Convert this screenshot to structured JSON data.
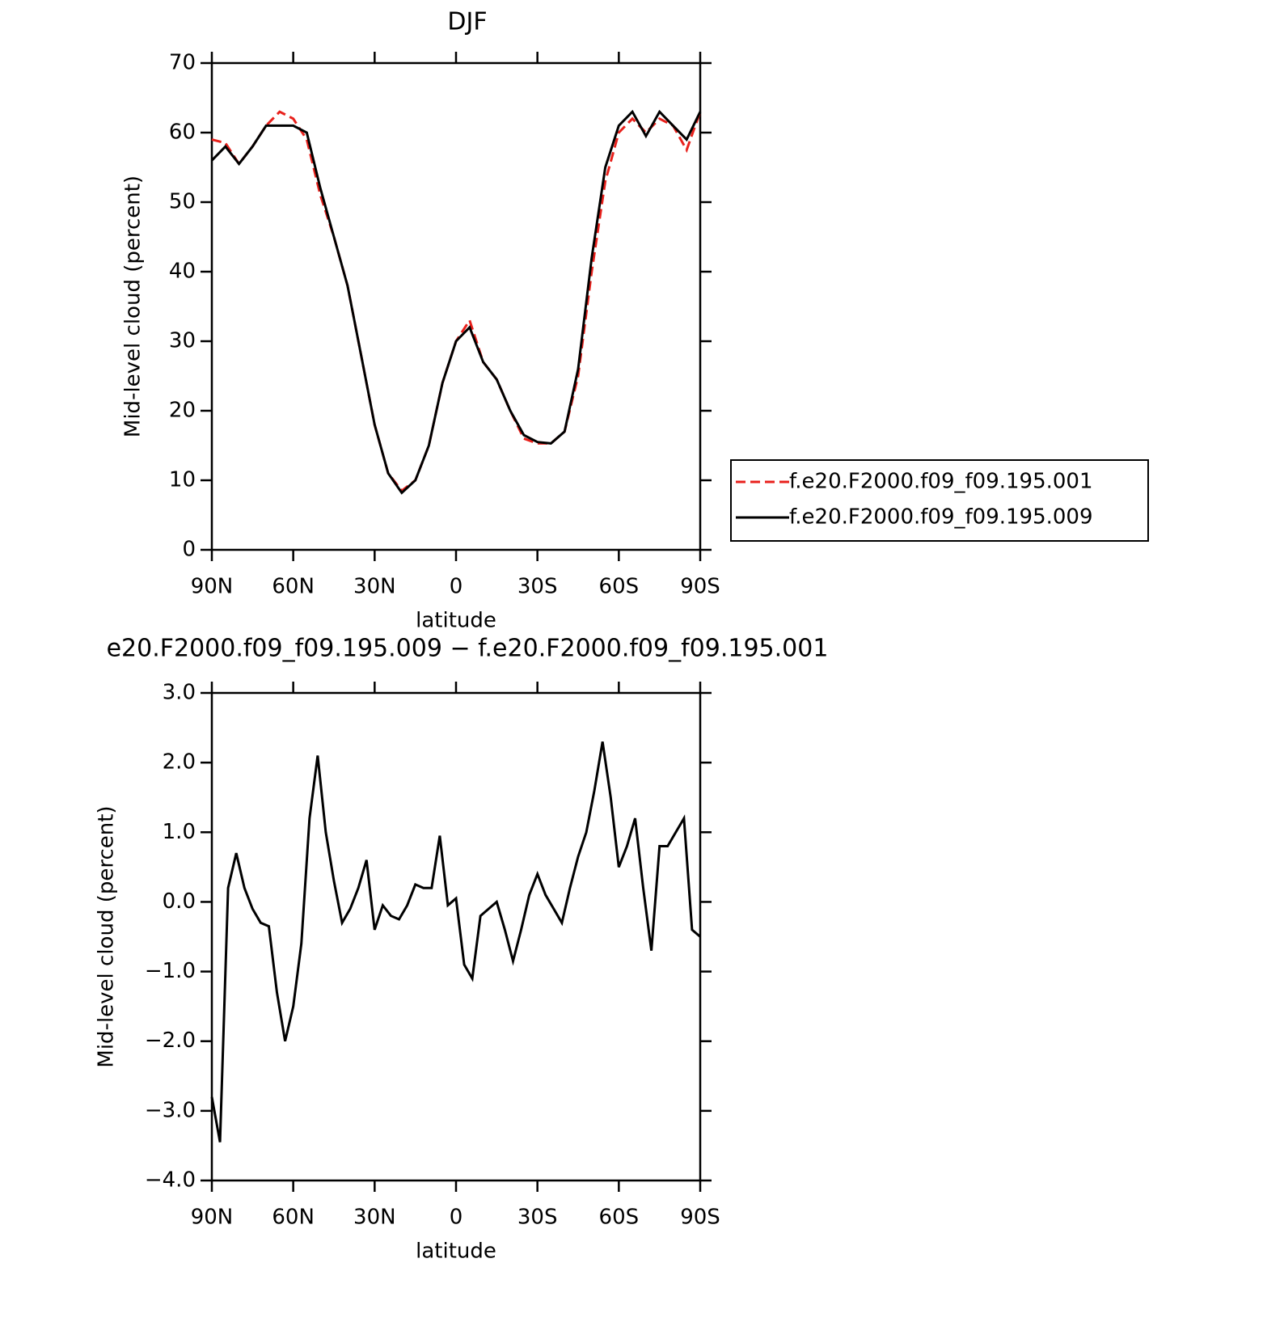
{
  "chart_data": [
    {
      "type": "line",
      "title": "DJF",
      "xlabel": "latitude",
      "ylabel": "Mid-level cloud (percent)",
      "x": [
        90,
        85,
        80,
        75,
        70,
        65,
        60,
        55,
        50,
        45,
        40,
        35,
        30,
        25,
        20,
        15,
        10,
        5,
        0,
        -5,
        -10,
        -15,
        -20,
        -25,
        -30,
        -35,
        -40,
        -45,
        -50,
        -55,
        -60,
        -65,
        -70,
        -75,
        -80,
        -85,
        -90
      ],
      "series": [
        {
          "name": "f.e20.F2000.f09_f09.195.001",
          "color": "#e8211c",
          "style": "dashed",
          "values": [
            59,
            58.5,
            55.5,
            58,
            61,
            63,
            62,
            59,
            51,
            45,
            38,
            28,
            18,
            11,
            8.5,
            10,
            15,
            24,
            30,
            33,
            27,
            24.5,
            20,
            16,
            15.3,
            15.3,
            17,
            25,
            40,
            53,
            60,
            62,
            60,
            62,
            61,
            57.5,
            63
          ]
        },
        {
          "name": "f.e20.F2000.f09_f09.195.009",
          "color": "#000000",
          "style": "solid",
          "values": [
            56,
            58,
            55.5,
            58,
            61,
            61,
            61,
            60,
            52,
            45,
            38,
            28,
            18,
            11,
            8.2,
            10,
            15,
            24,
            30,
            32,
            27,
            24.5,
            20,
            16.5,
            15.5,
            15.3,
            17,
            26,
            42,
            55,
            61,
            63,
            59.5,
            63,
            61,
            59,
            63
          ]
        }
      ],
      "xlim": [
        90,
        -90
      ],
      "xticks": [
        {
          "value": 90,
          "label": "90N"
        },
        {
          "value": 60,
          "label": "60N"
        },
        {
          "value": 30,
          "label": "30N"
        },
        0,
        {
          "value": -30,
          "label": "30S"
        },
        {
          "value": -60,
          "label": "60S"
        },
        {
          "value": -90,
          "label": "90S"
        }
      ],
      "ylim": [
        0,
        70
      ],
      "yticks": [
        0,
        10,
        20,
        30,
        40,
        50,
        60,
        70
      ],
      "legend": "right"
    },
    {
      "type": "line",
      "title": "e20.F2000.f09_f09.195.009 − f.e20.F2000.f09_f09.195.001",
      "xlabel": "latitude",
      "ylabel": "Mid-level cloud (percent)",
      "x": [
        90,
        87,
        84,
        81,
        78,
        75,
        72,
        69,
        66,
        63,
        60,
        57,
        54,
        51,
        48,
        45,
        42,
        39,
        36,
        33,
        30,
        27,
        24,
        21,
        18,
        15,
        12,
        9,
        6,
        3,
        0,
        -3,
        -6,
        -9,
        -12,
        -15,
        -18,
        -21,
        -24,
        -27,
        -30,
        -33,
        -36,
        -39,
        -42,
        -45,
        -48,
        -51,
        -54,
        -57,
        -60,
        -63,
        -66,
        -69,
        -72,
        -75,
        -78,
        -81,
        -84,
        -87,
        -90
      ],
      "series": [
        {
          "color": "#000000",
          "style": "solid",
          "values": [
            -2.8,
            -3.45,
            0.2,
            0.7,
            0.2,
            -0.1,
            -0.3,
            -0.35,
            -1.3,
            -2.0,
            -1.5,
            -0.6,
            1.2,
            2.1,
            1.0,
            0.3,
            -0.3,
            -0.1,
            0.2,
            0.6,
            -0.4,
            -0.05,
            -0.2,
            -0.25,
            -0.05,
            0.25,
            0.2,
            0.2,
            0.95,
            -0.05,
            0.05,
            -0.9,
            -1.1,
            -0.2,
            -0.1,
            0.0,
            -0.4,
            -0.85,
            -0.4,
            0.1,
            0.4,
            0.1,
            -0.1,
            -0.3,
            0.2,
            0.65,
            1.0,
            1.6,
            2.3,
            1.5,
            0.5,
            0.8,
            1.2,
            0.2,
            -0.7,
            0.8,
            0.8,
            1.0,
            1.2,
            -0.4,
            -0.5
          ]
        }
      ],
      "xlim": [
        90,
        -90
      ],
      "xticks": [
        {
          "value": 90,
          "label": "90N"
        },
        {
          "value": 60,
          "label": "60N"
        },
        {
          "value": 30,
          "label": "30N"
        },
        0,
        {
          "value": -30,
          "label": "30S"
        },
        {
          "value": -60,
          "label": "60S"
        },
        {
          "value": -90,
          "label": "90S"
        }
      ],
      "ylim": [
        -4,
        3
      ],
      "yticks": [
        {
          "value": -4,
          "label": "−4.0"
        },
        {
          "value": -3,
          "label": "−3.0"
        },
        {
          "value": -2,
          "label": "−2.0"
        },
        {
          "value": -1,
          "label": "−1.0"
        },
        {
          "value": 0,
          "label": "0.0"
        },
        {
          "value": 1,
          "label": "1.0"
        },
        {
          "value": 2,
          "label": "2.0"
        },
        {
          "value": 3,
          "label": "3.0"
        }
      ]
    }
  ]
}
